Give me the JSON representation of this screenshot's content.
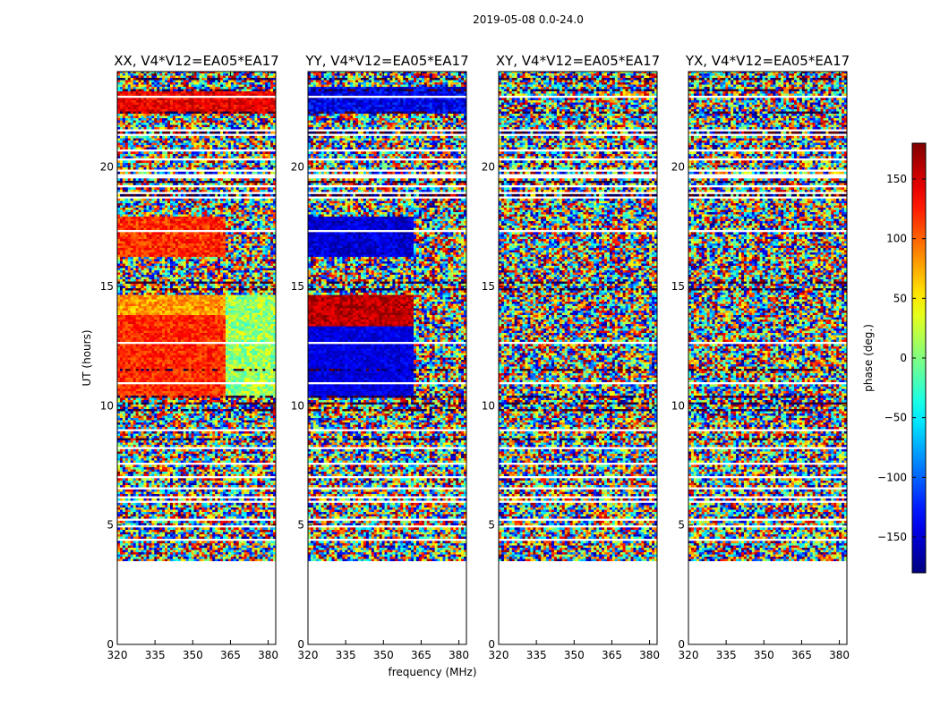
{
  "figure": {
    "suptitle": "2019-05-08 0.0-24.0"
  },
  "chart_data": {
    "type": "heatmap",
    "x_quantity": "frequency",
    "y_quantity": "UT",
    "xlabel": "frequency (MHz)",
    "ylabel": "UT (hours)",
    "xlim": [
      320,
      383
    ],
    "ylim": [
      0,
      24
    ],
    "xticks": [
      320,
      335,
      350,
      365,
      380
    ],
    "yticks": [
      0,
      5,
      10,
      15,
      20
    ],
    "data_start_hour": 3.4,
    "data_end_hour": 24.0,
    "colormap": "jet",
    "colorbar": {
      "label": "phase (deg.)",
      "range": [
        -180,
        180
      ],
      "ticks": [
        -150,
        -100,
        -50,
        0,
        50,
        100,
        150
      ],
      "tick_labels": [
        "−150",
        "−100",
        "−50",
        "0",
        "50",
        "100",
        "150"
      ]
    },
    "panels": [
      {
        "title": "XX, V4*V12=EA05*EA17",
        "coherent_segments": [
          {
            "ut_start": 10.3,
            "ut_end": 13.8,
            "freq_start": 320,
            "freq_end": 363,
            "phase_mean": 120,
            "phase_spread": 25
          },
          {
            "ut_start": 13.8,
            "ut_end": 14.6,
            "freq_start": 320,
            "freq_end": 363,
            "phase_mean": 80,
            "phase_spread": 30
          },
          {
            "ut_start": 10.3,
            "ut_end": 14.6,
            "freq_start": 363,
            "freq_end": 383,
            "phase_mean": 10,
            "phase_spread": 40
          },
          {
            "ut_start": 16.2,
            "ut_end": 17.9,
            "freq_start": 320,
            "freq_end": 363,
            "phase_mean": 120,
            "phase_spread": 30
          },
          {
            "ut_start": 22.2,
            "ut_end": 23.2,
            "freq_start": 320,
            "freq_end": 383,
            "phase_mean": 140,
            "phase_spread": 25
          }
        ]
      },
      {
        "title": "YY, V4*V12=EA05*EA17",
        "coherent_segments": [
          {
            "ut_start": 10.3,
            "ut_end": 13.3,
            "freq_start": 320,
            "freq_end": 362,
            "phase_mean": -145,
            "phase_spread": 20
          },
          {
            "ut_start": 13.3,
            "ut_end": 14.6,
            "freq_start": 320,
            "freq_end": 362,
            "phase_mean": 160,
            "phase_spread": 25
          },
          {
            "ut_start": 16.2,
            "ut_end": 17.9,
            "freq_start": 320,
            "freq_end": 362,
            "phase_mean": -150,
            "phase_spread": 25
          },
          {
            "ut_start": 22.2,
            "ut_end": 23.3,
            "freq_start": 320,
            "freq_end": 383,
            "phase_mean": -140,
            "phase_spread": 30
          }
        ]
      },
      {
        "title": "XY, V4*V12=EA05*EA17",
        "coherent_segments": []
      },
      {
        "title": "YX, V4*V12=EA05*EA17",
        "coherent_segments": []
      }
    ]
  }
}
